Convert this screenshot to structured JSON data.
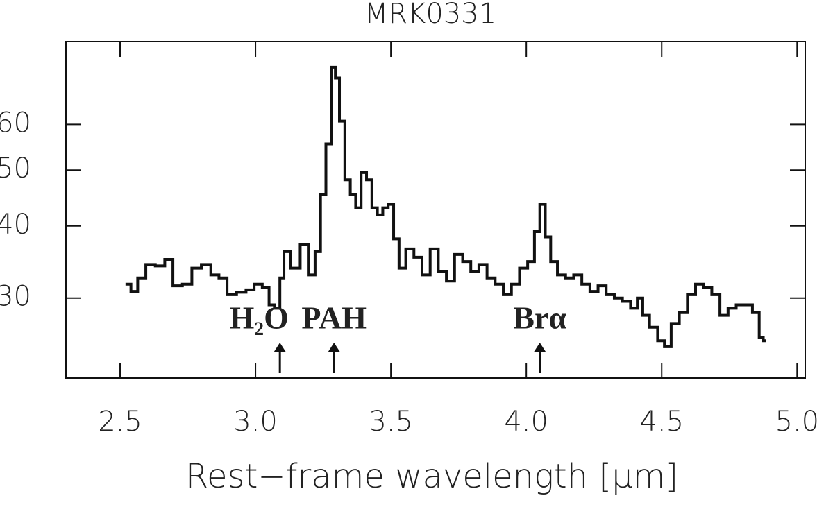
{
  "chart_data": {
    "type": "line",
    "title": "MRK0331",
    "xlabel": "Rest−frame wavelength [μm]",
    "x": [
      2.53,
      2.55,
      2.58,
      2.61,
      2.65,
      2.68,
      2.71,
      2.75,
      2.78,
      2.82,
      2.85,
      2.88,
      2.91,
      2.95,
      2.98,
      3.01,
      3.04,
      3.06,
      3.08,
      3.1,
      3.11,
      3.15,
      3.18,
      3.21,
      3.23,
      3.25,
      3.27,
      3.29,
      3.3,
      3.32,
      3.34,
      3.36,
      3.38,
      3.4,
      3.42,
      3.44,
      3.46,
      3.48,
      3.5,
      3.52,
      3.54,
      3.57,
      3.6,
      3.63,
      3.66,
      3.69,
      3.72,
      3.75,
      3.78,
      3.81,
      3.84,
      3.87,
      3.9,
      3.93,
      3.96,
      3.99,
      4.02,
      4.04,
      4.06,
      4.08,
      4.1,
      4.13,
      4.16,
      4.19,
      4.22,
      4.25,
      4.28,
      4.31,
      4.34,
      4.37,
      4.4,
      4.42,
      4.44,
      4.47,
      4.5,
      4.52,
      4.55,
      4.58,
      4.61,
      4.64,
      4.67,
      4.7,
      4.73,
      4.76,
      4.79,
      4.82,
      4.85,
      4.87,
      4.88
    ],
    "series": [
      {
        "name": "MRK0331",
        "color": "#111111",
        "values": [
          31.7,
          30.8,
          32.5,
          34.3,
          34.1,
          35.0,
          31.5,
          31.7,
          33.8,
          34.3,
          32.9,
          32.5,
          30.4,
          30.7,
          31.0,
          31.7,
          31.3,
          29.2,
          28.8,
          32.5,
          36.1,
          33.8,
          37.1,
          32.9,
          36.1,
          45.4,
          55.5,
          75.4,
          72.2,
          60.8,
          48.1,
          45.4,
          43.0,
          49.5,
          48.1,
          43.0,
          41.8,
          43.0,
          43.6,
          38.0,
          33.8,
          36.5,
          35.3,
          32.9,
          36.5,
          33.3,
          32.1,
          35.7,
          34.7,
          33.3,
          34.3,
          32.5,
          31.7,
          30.4,
          31.7,
          33.8,
          34.7,
          39.1,
          43.6,
          38.3,
          34.7,
          32.9,
          32.5,
          32.9,
          31.7,
          30.8,
          31.5,
          30.4,
          30.0,
          29.6,
          28.8,
          30.0,
          28.0,
          26.7,
          25.3,
          24.7,
          27.1,
          28.3,
          30.4,
          31.7,
          31.3,
          30.4,
          28.0,
          28.8,
          29.2,
          29.2,
          28.3,
          25.6,
          25.3
        ]
      }
    ],
    "xlim": [
      2.3,
      5.03
    ],
    "ylim": [
      21.8,
      83.5
    ],
    "ylog": true,
    "xticks": [
      2.5,
      {
        "value": 3,
        "label": "3.0"
      },
      3.5,
      {
        "value": 4,
        "label": "4.0"
      },
      4.5,
      {
        "value": 5,
        "label": "5.0"
      }
    ],
    "yticks": [
      30,
      40,
      50,
      60
    ],
    "annotations": [
      {
        "text": "H₂O",
        "x": 3.09
      },
      {
        "text": "PAH",
        "x": 3.29
      },
      {
        "text": "Brα",
        "x": 4.05
      }
    ]
  }
}
